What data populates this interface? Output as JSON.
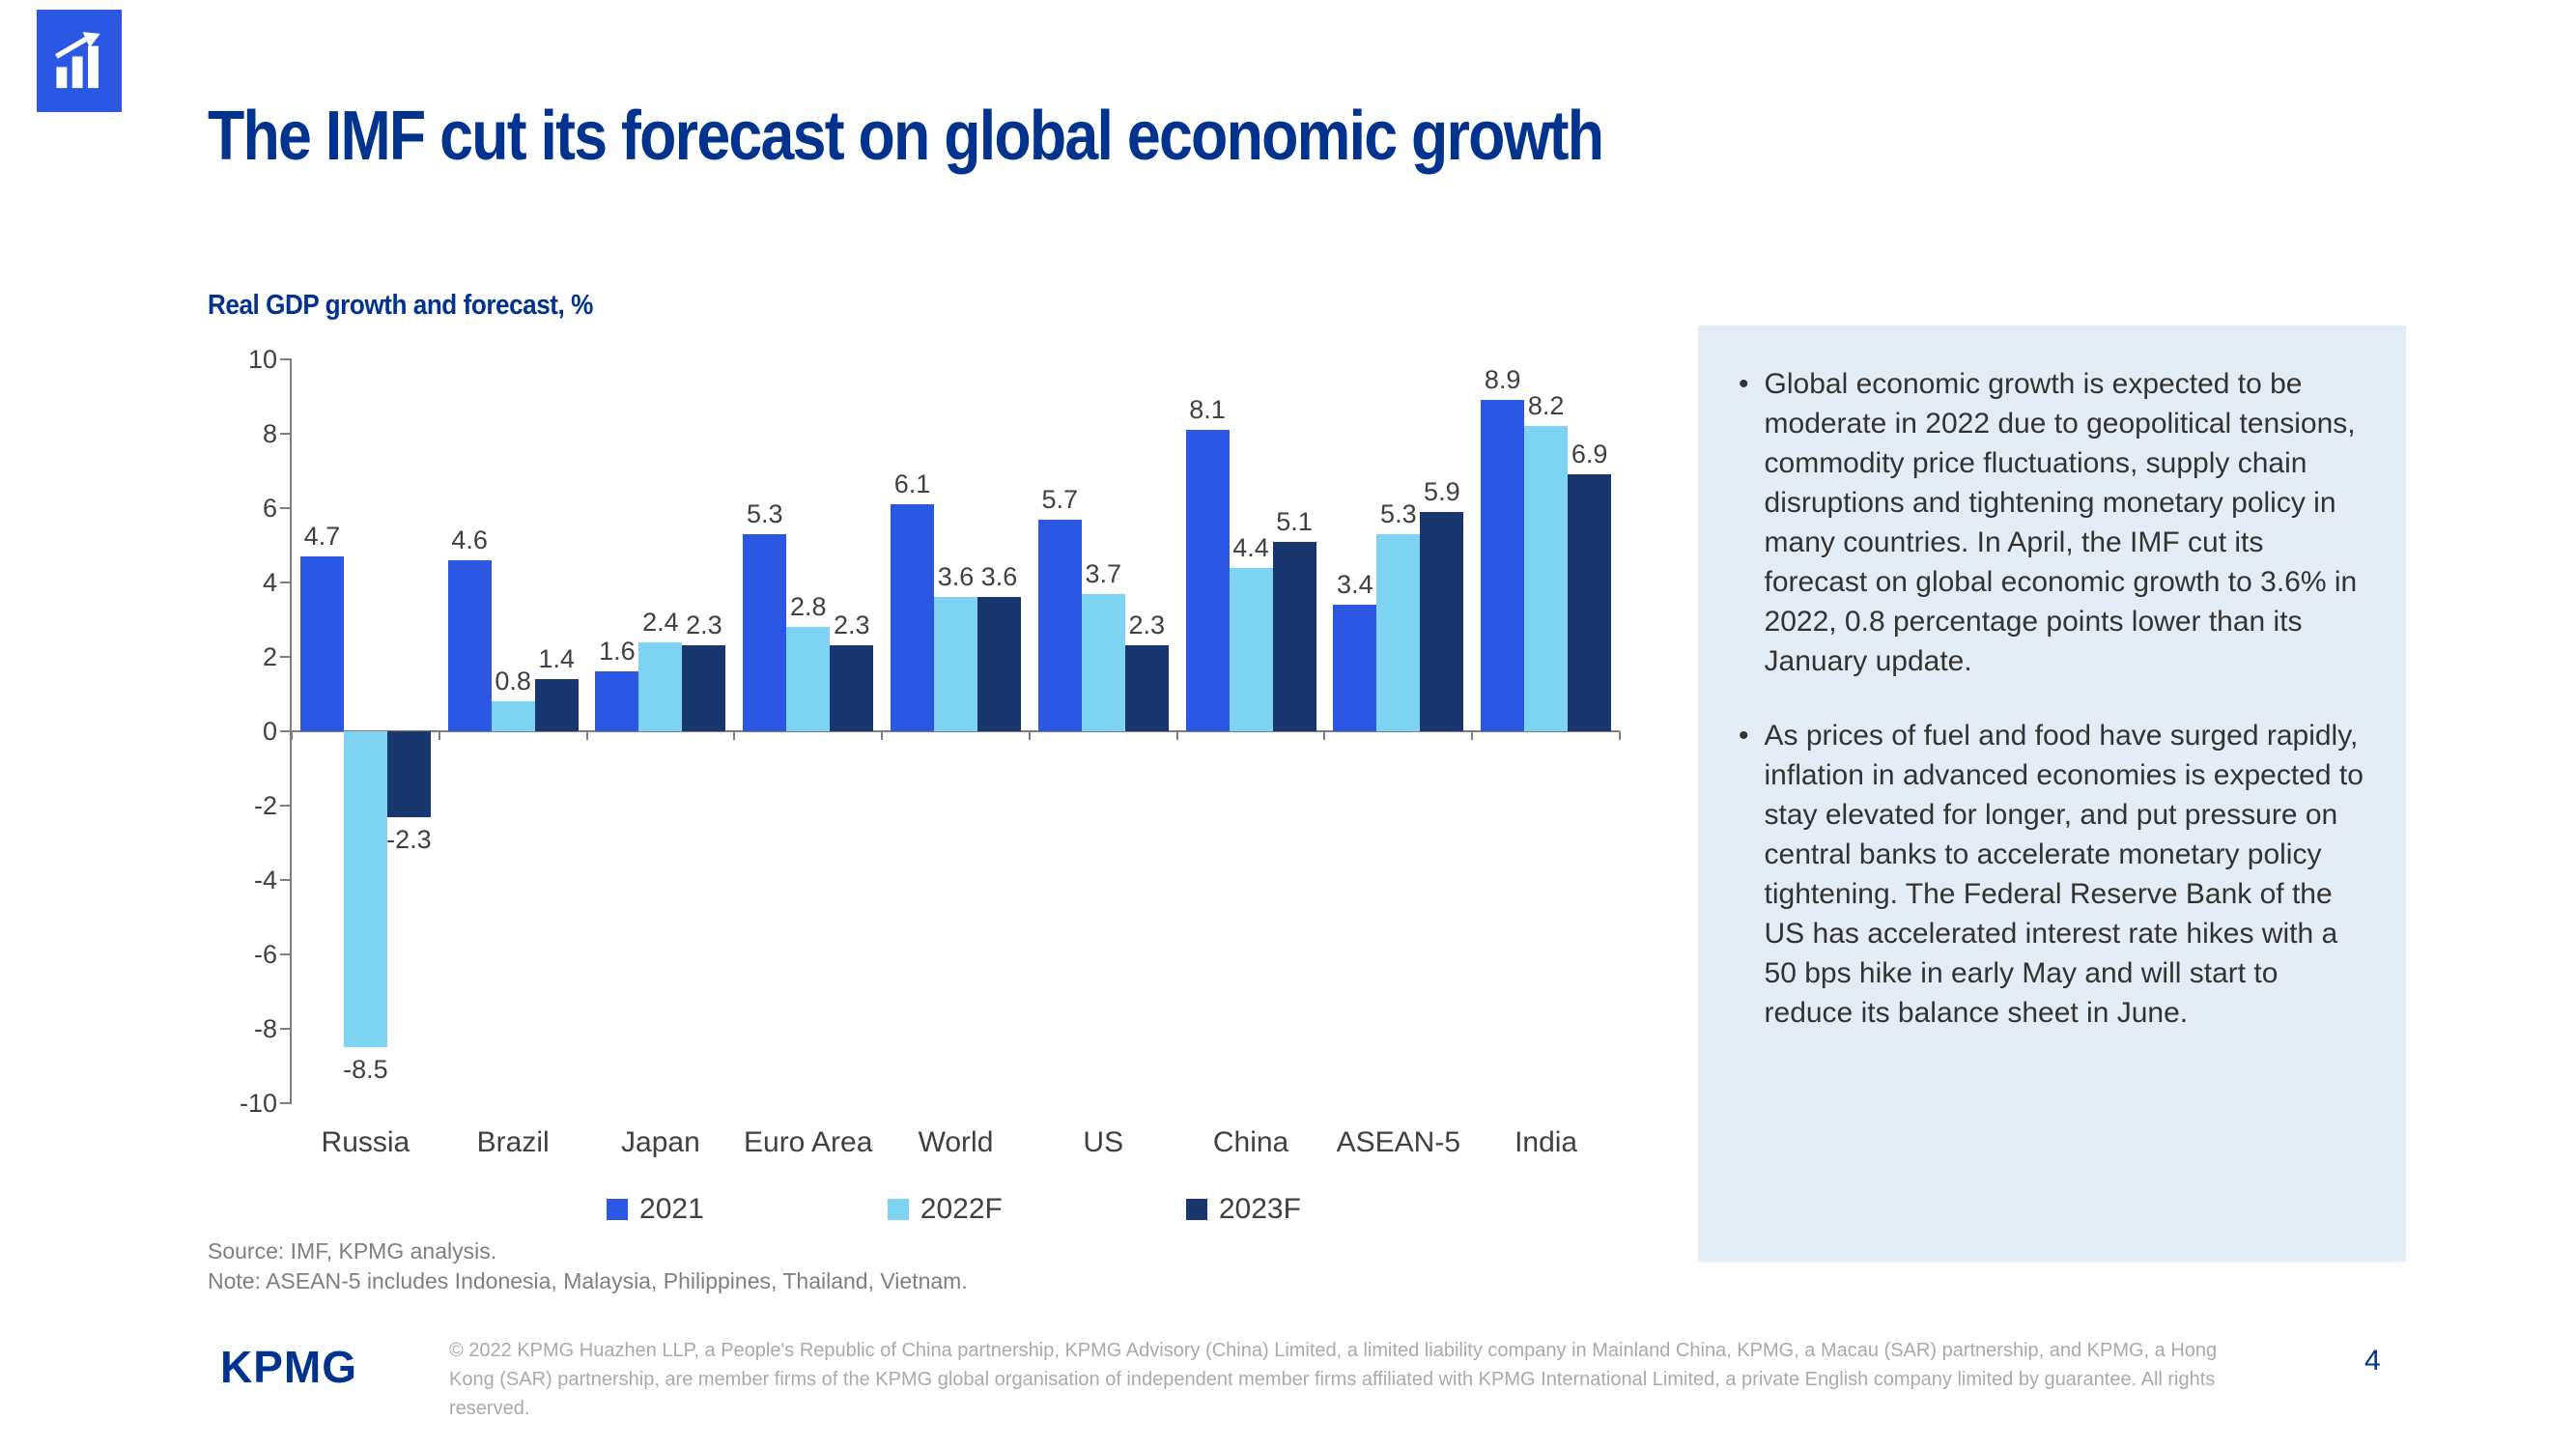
{
  "header": {
    "title": "The IMF cut its forecast on global economic growth",
    "logo_icon": "bar-chart-up-arrow",
    "logo_color": "#2B57E2"
  },
  "chart_data": {
    "type": "bar",
    "title": "Real GDP growth and forecast, %",
    "categories": [
      "Russia",
      "Brazil",
      "Japan",
      "Euro Area",
      "World",
      "US",
      "China",
      "ASEAN-5",
      "India"
    ],
    "series": [
      {
        "name": "2021",
        "color": "#2B57E2",
        "values": [
          4.7,
          4.6,
          1.6,
          5.3,
          6.1,
          5.7,
          8.1,
          3.4,
          8.9
        ]
      },
      {
        "name": "2022F",
        "color": "#7ED2F2",
        "values": [
          -8.5,
          0.8,
          2.4,
          2.8,
          3.6,
          3.7,
          4.4,
          5.3,
          8.2
        ]
      },
      {
        "name": "2023F",
        "color": "#17376E",
        "values": [
          -2.3,
          1.4,
          2.3,
          2.3,
          3.6,
          2.3,
          5.1,
          5.9,
          6.9
        ]
      }
    ],
    "xlabel": "",
    "ylabel": "",
    "ylim": [
      -10,
      10
    ],
    "ytick_step": 2,
    "grid": false,
    "legend_position": "bottom",
    "value_labels": true
  },
  "notes": {
    "source": "Source: IMF, KPMG analysis.",
    "note": "Note: ASEAN-5 includes Indonesia, Malaysia, Philippines, Thailand, Vietnam."
  },
  "sidebar": {
    "bullets": [
      "Global economic growth is expected to be moderate in 2022 due to geopolitical tensions, commodity price fluctuations, supply chain disruptions and tightening monetary policy in many countries. In April, the IMF cut its forecast on global economic growth to 3.6% in 2022, 0.8 percentage points lower than its January update.",
      "As prices of fuel and food have surged rapidly, inflation in advanced economies is expected to stay elevated for longer, and put pressure on central banks to accelerate monetary policy tightening. The Federal Reserve Bank of the US has accelerated interest rate hikes with a 50 bps hike in early May and will start to reduce its balance sheet in June."
    ]
  },
  "footer": {
    "logo_text": "KPMG",
    "copyright": "© 2022 KPMG Huazhen LLP, a People's Republic of China partnership, KPMG Advisory (China) Limited, a limited liability company in Mainland China, KPMG, a Macau (SAR) partnership, and KPMG, a Hong Kong (SAR) partnership, are member firms of the KPMG global organisation of independent member firms affiliated with KPMG International Limited, a private English company limited by guarantee. All rights reserved.",
    "page_number": "4"
  }
}
